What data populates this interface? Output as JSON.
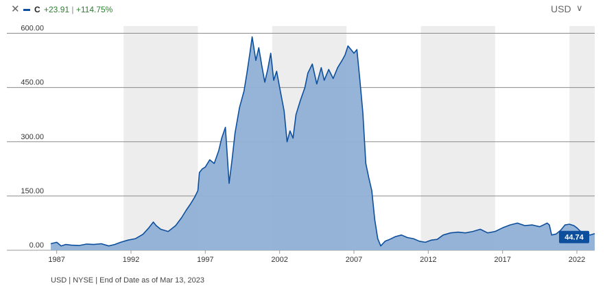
{
  "header": {
    "close_icon": "close-icon",
    "ticker": "C",
    "change_abs": "+23.91",
    "separator": "|",
    "change_pct": "+114.75%",
    "currency_label": "USD",
    "dropdown_icon": "chevron-down-icon",
    "positive_color": "#2e7d32"
  },
  "footer": {
    "note": "USD | NYSE | End of Date as of Mar 13, 2023"
  },
  "chart_data": {
    "type": "area",
    "series": [
      {
        "color": "#0d4f9c",
        "fill": "#8fb0d6",
        "points": [
          [
            1986.6,
            18
          ],
          [
            1987.0,
            22
          ],
          [
            1987.3,
            12
          ],
          [
            1987.6,
            16
          ],
          [
            1988.0,
            14
          ],
          [
            1988.5,
            13
          ],
          [
            1989.0,
            17
          ],
          [
            1989.5,
            16
          ],
          [
            1990.0,
            18
          ],
          [
            1990.5,
            12
          ],
          [
            1990.9,
            16
          ],
          [
            1991.3,
            22
          ],
          [
            1991.8,
            28
          ],
          [
            1992.3,
            32
          ],
          [
            1992.8,
            44
          ],
          [
            1993.2,
            62
          ],
          [
            1993.5,
            78
          ],
          [
            1993.7,
            68
          ],
          [
            1994.0,
            58
          ],
          [
            1994.5,
            52
          ],
          [
            1995.0,
            68
          ],
          [
            1995.4,
            90
          ],
          [
            1995.7,
            110
          ],
          [
            1996.0,
            128
          ],
          [
            1996.3,
            148
          ],
          [
            1996.5,
            165
          ],
          [
            1996.6,
            215
          ],
          [
            1996.8,
            225
          ],
          [
            1997.0,
            230
          ],
          [
            1997.3,
            250
          ],
          [
            1997.6,
            240
          ],
          [
            1997.9,
            275
          ],
          [
            1998.1,
            310
          ],
          [
            1998.35,
            340
          ],
          [
            1998.6,
            185
          ],
          [
            1998.8,
            250
          ],
          [
            1999.0,
            325
          ],
          [
            1999.3,
            395
          ],
          [
            1999.6,
            440
          ],
          [
            1999.8,
            490
          ],
          [
            2000.0,
            545
          ],
          [
            2000.15,
            590
          ],
          [
            2000.4,
            525
          ],
          [
            2000.6,
            560
          ],
          [
            2000.8,
            510
          ],
          [
            2001.0,
            465
          ],
          [
            2001.2,
            500
          ],
          [
            2001.4,
            545
          ],
          [
            2001.6,
            470
          ],
          [
            2001.8,
            495
          ],
          [
            2002.0,
            450
          ],
          [
            2002.3,
            385
          ],
          [
            2002.5,
            300
          ],
          [
            2002.7,
            330
          ],
          [
            2002.9,
            310
          ],
          [
            2003.1,
            375
          ],
          [
            2003.4,
            415
          ],
          [
            2003.7,
            450
          ],
          [
            2003.9,
            490
          ],
          [
            2004.2,
            515
          ],
          [
            2004.5,
            460
          ],
          [
            2004.8,
            505
          ],
          [
            2005.0,
            470
          ],
          [
            2005.3,
            500
          ],
          [
            2005.6,
            475
          ],
          [
            2005.9,
            505
          ],
          [
            2006.2,
            525
          ],
          [
            2006.4,
            540
          ],
          [
            2006.6,
            565
          ],
          [
            2006.8,
            555
          ],
          [
            2007.0,
            545
          ],
          [
            2007.2,
            555
          ],
          [
            2007.4,
            470
          ],
          [
            2007.6,
            380
          ],
          [
            2007.8,
            240
          ],
          [
            2008.0,
            200
          ],
          [
            2008.2,
            165
          ],
          [
            2008.4,
            85
          ],
          [
            2008.6,
            32
          ],
          [
            2008.8,
            12
          ],
          [
            2009.1,
            25
          ],
          [
            2009.4,
            30
          ],
          [
            2009.8,
            38
          ],
          [
            2010.2,
            42
          ],
          [
            2010.6,
            35
          ],
          [
            2011.0,
            32
          ],
          [
            2011.4,
            25
          ],
          [
            2011.8,
            22
          ],
          [
            2012.2,
            28
          ],
          [
            2012.6,
            30
          ],
          [
            2013.0,
            42
          ],
          [
            2013.5,
            48
          ],
          [
            2014.0,
            50
          ],
          [
            2014.5,
            48
          ],
          [
            2015.0,
            52
          ],
          [
            2015.5,
            58
          ],
          [
            2016.0,
            48
          ],
          [
            2016.5,
            52
          ],
          [
            2017.0,
            62
          ],
          [
            2017.5,
            70
          ],
          [
            2018.0,
            75
          ],
          [
            2018.5,
            68
          ],
          [
            2019.0,
            70
          ],
          [
            2019.5,
            65
          ],
          [
            2020.0,
            75
          ],
          [
            2020.15,
            70
          ],
          [
            2020.3,
            42
          ],
          [
            2020.6,
            45
          ],
          [
            2020.9,
            55
          ],
          [
            2021.2,
            70
          ],
          [
            2021.5,
            72
          ],
          [
            2021.8,
            68
          ],
          [
            2022.0,
            62
          ],
          [
            2022.3,
            50
          ],
          [
            2022.6,
            45
          ],
          [
            2022.9,
            42
          ],
          [
            2023.2,
            46
          ]
        ]
      }
    ],
    "last_value_label": "44.74",
    "y_ticks": [
      0,
      150,
      300,
      450,
      600
    ],
    "y_tick_labels": [
      "0.00",
      "150.00",
      "300.00",
      "450.00",
      "600.00"
    ],
    "x_ticks": [
      1987,
      1992,
      1997,
      2002,
      2007,
      2012,
      2017,
      2022
    ],
    "x_tick_labels": [
      "1987",
      "1992",
      "1997",
      "2002",
      "2007",
      "2012",
      "2017",
      "2022"
    ],
    "xlim": [
      1986.6,
      2023.2
    ],
    "ylim": [
      0,
      620
    ],
    "grid": true,
    "shaded_bands": [
      [
        1991.5,
        1996.5
      ],
      [
        2001.5,
        2006.5
      ],
      [
        2011.5,
        2016.5
      ],
      [
        2021.5,
        2023.2
      ]
    ],
    "band_color": "#ededed"
  }
}
